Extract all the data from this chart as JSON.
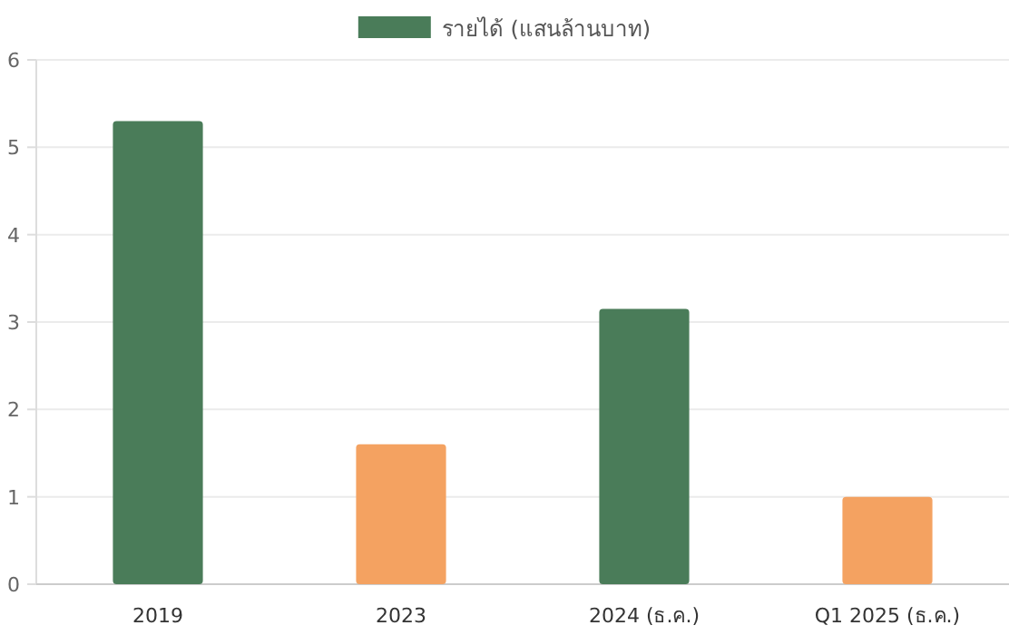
{
  "chart_data": {
    "type": "bar",
    "categories": [
      "2019",
      "2023",
      "2024 (ธ.ค.)",
      "Q1 2025 (ธ.ค.)"
    ],
    "series": [
      {
        "name": "รายได้ (แสนล้านบาท)",
        "color": "#4a7c59",
        "colors": [
          "#4a7c59",
          "#f4a261",
          "#4a7c59",
          "#f4a261"
        ],
        "values": [
          5.3,
          1.6,
          3.15,
          1.0
        ]
      }
    ],
    "ylim": [
      0,
      6
    ],
    "yticks": [
      0,
      1,
      2,
      3,
      4,
      5,
      6
    ],
    "grid": "y",
    "legend": "top"
  }
}
